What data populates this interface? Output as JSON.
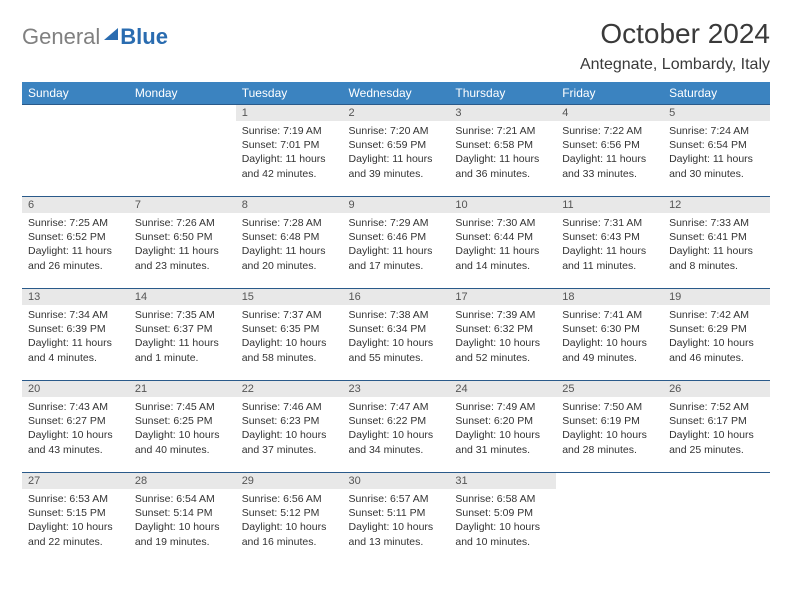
{
  "brand": {
    "gray": "General",
    "blue": "Blue"
  },
  "title": "October 2024",
  "subtitle": "Antegnate, Lombardy, Italy",
  "colors": {
    "header_bg": "#3b83c0",
    "header_text": "#ffffff",
    "daynum_bg": "#e8e8e8",
    "border": "#2a5a8a",
    "logo_gray": "#808080",
    "logo_blue": "#2a6cb0"
  },
  "weekdays": [
    "Sunday",
    "Monday",
    "Tuesday",
    "Wednesday",
    "Thursday",
    "Friday",
    "Saturday"
  ],
  "weeks": [
    [
      null,
      null,
      {
        "n": "1",
        "sr": "Sunrise: 7:19 AM",
        "ss": "Sunset: 7:01 PM",
        "dl1": "Daylight: 11 hours",
        "dl2": "and 42 minutes."
      },
      {
        "n": "2",
        "sr": "Sunrise: 7:20 AM",
        "ss": "Sunset: 6:59 PM",
        "dl1": "Daylight: 11 hours",
        "dl2": "and 39 minutes."
      },
      {
        "n": "3",
        "sr": "Sunrise: 7:21 AM",
        "ss": "Sunset: 6:58 PM",
        "dl1": "Daylight: 11 hours",
        "dl2": "and 36 minutes."
      },
      {
        "n": "4",
        "sr": "Sunrise: 7:22 AM",
        "ss": "Sunset: 6:56 PM",
        "dl1": "Daylight: 11 hours",
        "dl2": "and 33 minutes."
      },
      {
        "n": "5",
        "sr": "Sunrise: 7:24 AM",
        "ss": "Sunset: 6:54 PM",
        "dl1": "Daylight: 11 hours",
        "dl2": "and 30 minutes."
      }
    ],
    [
      {
        "n": "6",
        "sr": "Sunrise: 7:25 AM",
        "ss": "Sunset: 6:52 PM",
        "dl1": "Daylight: 11 hours",
        "dl2": "and 26 minutes."
      },
      {
        "n": "7",
        "sr": "Sunrise: 7:26 AM",
        "ss": "Sunset: 6:50 PM",
        "dl1": "Daylight: 11 hours",
        "dl2": "and 23 minutes."
      },
      {
        "n": "8",
        "sr": "Sunrise: 7:28 AM",
        "ss": "Sunset: 6:48 PM",
        "dl1": "Daylight: 11 hours",
        "dl2": "and 20 minutes."
      },
      {
        "n": "9",
        "sr": "Sunrise: 7:29 AM",
        "ss": "Sunset: 6:46 PM",
        "dl1": "Daylight: 11 hours",
        "dl2": "and 17 minutes."
      },
      {
        "n": "10",
        "sr": "Sunrise: 7:30 AM",
        "ss": "Sunset: 6:44 PM",
        "dl1": "Daylight: 11 hours",
        "dl2": "and 14 minutes."
      },
      {
        "n": "11",
        "sr": "Sunrise: 7:31 AM",
        "ss": "Sunset: 6:43 PM",
        "dl1": "Daylight: 11 hours",
        "dl2": "and 11 minutes."
      },
      {
        "n": "12",
        "sr": "Sunrise: 7:33 AM",
        "ss": "Sunset: 6:41 PM",
        "dl1": "Daylight: 11 hours",
        "dl2": "and 8 minutes."
      }
    ],
    [
      {
        "n": "13",
        "sr": "Sunrise: 7:34 AM",
        "ss": "Sunset: 6:39 PM",
        "dl1": "Daylight: 11 hours",
        "dl2": "and 4 minutes."
      },
      {
        "n": "14",
        "sr": "Sunrise: 7:35 AM",
        "ss": "Sunset: 6:37 PM",
        "dl1": "Daylight: 11 hours",
        "dl2": "and 1 minute."
      },
      {
        "n": "15",
        "sr": "Sunrise: 7:37 AM",
        "ss": "Sunset: 6:35 PM",
        "dl1": "Daylight: 10 hours",
        "dl2": "and 58 minutes."
      },
      {
        "n": "16",
        "sr": "Sunrise: 7:38 AM",
        "ss": "Sunset: 6:34 PM",
        "dl1": "Daylight: 10 hours",
        "dl2": "and 55 minutes."
      },
      {
        "n": "17",
        "sr": "Sunrise: 7:39 AM",
        "ss": "Sunset: 6:32 PM",
        "dl1": "Daylight: 10 hours",
        "dl2": "and 52 minutes."
      },
      {
        "n": "18",
        "sr": "Sunrise: 7:41 AM",
        "ss": "Sunset: 6:30 PM",
        "dl1": "Daylight: 10 hours",
        "dl2": "and 49 minutes."
      },
      {
        "n": "19",
        "sr": "Sunrise: 7:42 AM",
        "ss": "Sunset: 6:29 PM",
        "dl1": "Daylight: 10 hours",
        "dl2": "and 46 minutes."
      }
    ],
    [
      {
        "n": "20",
        "sr": "Sunrise: 7:43 AM",
        "ss": "Sunset: 6:27 PM",
        "dl1": "Daylight: 10 hours",
        "dl2": "and 43 minutes."
      },
      {
        "n": "21",
        "sr": "Sunrise: 7:45 AM",
        "ss": "Sunset: 6:25 PM",
        "dl1": "Daylight: 10 hours",
        "dl2": "and 40 minutes."
      },
      {
        "n": "22",
        "sr": "Sunrise: 7:46 AM",
        "ss": "Sunset: 6:23 PM",
        "dl1": "Daylight: 10 hours",
        "dl2": "and 37 minutes."
      },
      {
        "n": "23",
        "sr": "Sunrise: 7:47 AM",
        "ss": "Sunset: 6:22 PM",
        "dl1": "Daylight: 10 hours",
        "dl2": "and 34 minutes."
      },
      {
        "n": "24",
        "sr": "Sunrise: 7:49 AM",
        "ss": "Sunset: 6:20 PM",
        "dl1": "Daylight: 10 hours",
        "dl2": "and 31 minutes."
      },
      {
        "n": "25",
        "sr": "Sunrise: 7:50 AM",
        "ss": "Sunset: 6:19 PM",
        "dl1": "Daylight: 10 hours",
        "dl2": "and 28 minutes."
      },
      {
        "n": "26",
        "sr": "Sunrise: 7:52 AM",
        "ss": "Sunset: 6:17 PM",
        "dl1": "Daylight: 10 hours",
        "dl2": "and 25 minutes."
      }
    ],
    [
      {
        "n": "27",
        "sr": "Sunrise: 6:53 AM",
        "ss": "Sunset: 5:15 PM",
        "dl1": "Daylight: 10 hours",
        "dl2": "and 22 minutes."
      },
      {
        "n": "28",
        "sr": "Sunrise: 6:54 AM",
        "ss": "Sunset: 5:14 PM",
        "dl1": "Daylight: 10 hours",
        "dl2": "and 19 minutes."
      },
      {
        "n": "29",
        "sr": "Sunrise: 6:56 AM",
        "ss": "Sunset: 5:12 PM",
        "dl1": "Daylight: 10 hours",
        "dl2": "and 16 minutes."
      },
      {
        "n": "30",
        "sr": "Sunrise: 6:57 AM",
        "ss": "Sunset: 5:11 PM",
        "dl1": "Daylight: 10 hours",
        "dl2": "and 13 minutes."
      },
      {
        "n": "31",
        "sr": "Sunrise: 6:58 AM",
        "ss": "Sunset: 5:09 PM",
        "dl1": "Daylight: 10 hours",
        "dl2": "and 10 minutes."
      },
      null,
      null
    ]
  ]
}
